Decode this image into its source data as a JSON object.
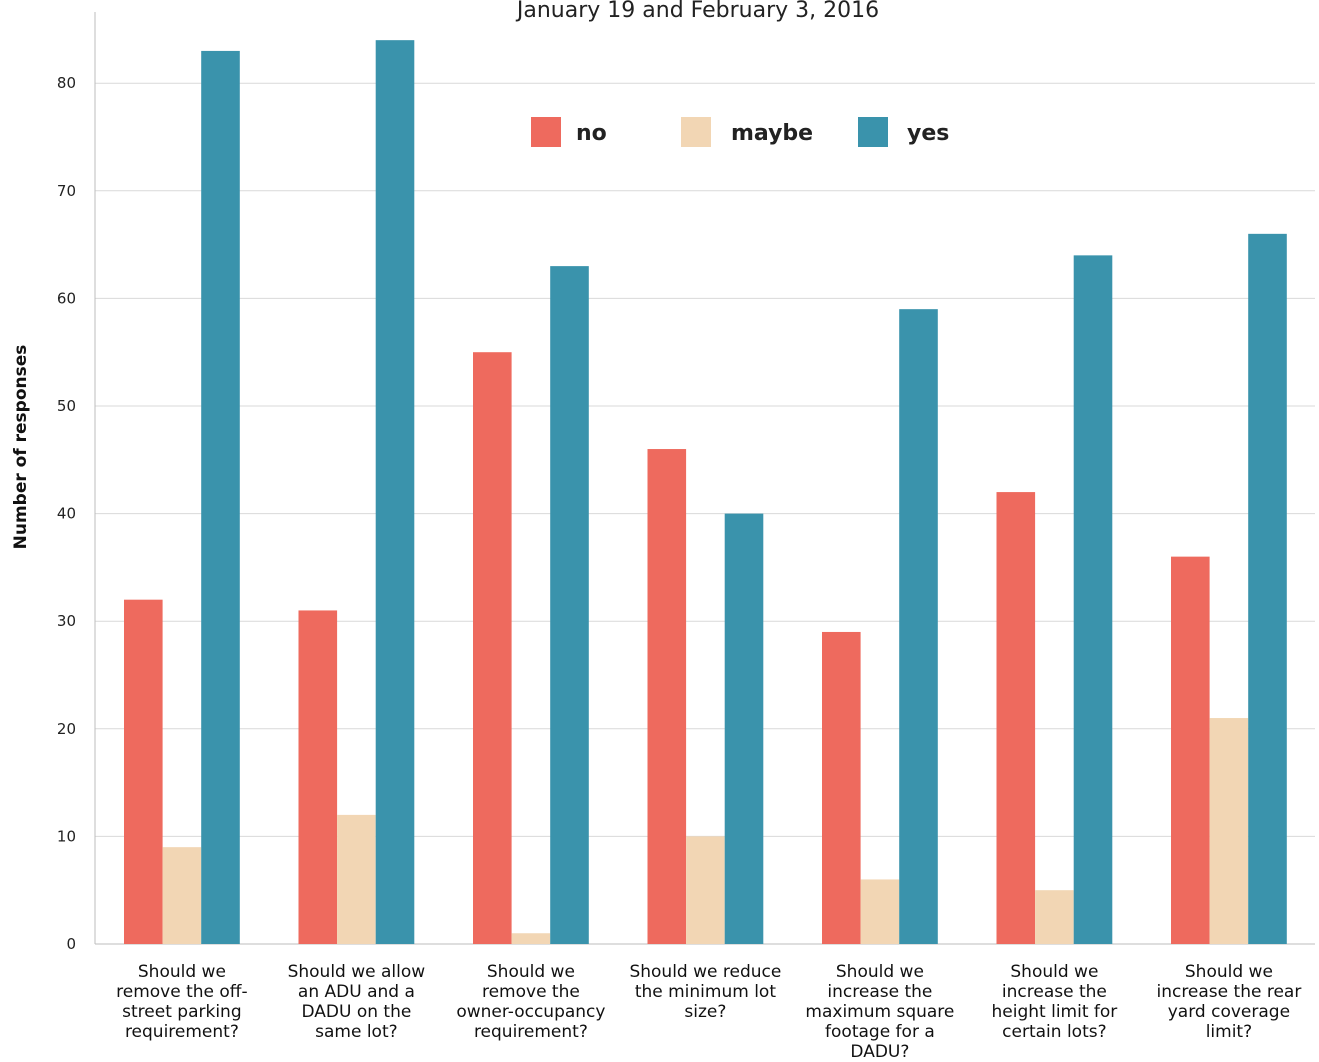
{
  "chart_data": {
    "type": "bar",
    "title": "January 19 and February 3, 2016",
    "xlabel": "",
    "ylabel": "Number of responses",
    "ylim": [
      0,
      84
    ],
    "yticks": [
      0,
      10,
      20,
      30,
      40,
      50,
      60,
      70,
      80
    ],
    "grid": true,
    "legend_position": "top-center",
    "categories": [
      [
        "Should we",
        "remove the off-",
        "street parking",
        "requirement?"
      ],
      [
        "Should we allow",
        "an ADU and a",
        "DADU on the",
        "same lot?"
      ],
      [
        "Should we",
        "remove the",
        "owner-occupancy",
        "requirement?"
      ],
      [
        "Should we reduce",
        "the minimum lot",
        "size?"
      ],
      [
        "Should we",
        "increase the",
        "maximum square",
        "footage for a",
        "DADU?"
      ],
      [
        "Should we",
        "increase the",
        "height limit for",
        "certain lots?"
      ],
      [
        "Should we",
        "increase the rear",
        "yard coverage",
        "limit?"
      ]
    ],
    "series": [
      {
        "name": "no",
        "color": "#ee6a5e",
        "values": [
          32,
          31,
          55,
          46,
          29,
          42,
          36
        ]
      },
      {
        "name": "maybe",
        "color": "#f2d6b4",
        "values": [
          9,
          12,
          1,
          10,
          6,
          5,
          21
        ]
      },
      {
        "name": "yes",
        "color": "#3a93ac",
        "values": [
          83,
          84,
          63,
          40,
          59,
          64,
          66
        ]
      }
    ]
  }
}
